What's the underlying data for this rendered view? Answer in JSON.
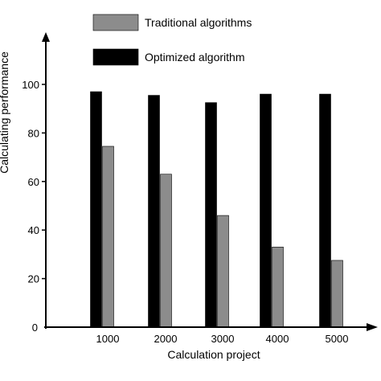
{
  "chart_data": {
    "type": "bar",
    "categories": [
      "1000",
      "2000",
      "3000",
      "4000",
      "5000"
    ],
    "series": [
      {
        "name": "Optimized algorithm",
        "values": [
          97,
          95.5,
          92.5,
          96,
          96
        ],
        "color": "#000000"
      },
      {
        "name": "Traditional algorithms",
        "values": [
          74.5,
          63,
          46,
          33,
          27.5
        ],
        "color": "#8c8c8c"
      }
    ],
    "xlabel": "Calculation project",
    "ylabel": "Calculating performance",
    "ylim": [
      0,
      120
    ],
    "yticks": [
      0,
      20,
      40,
      60,
      80,
      100
    ],
    "grid": false,
    "legend": [
      {
        "label": "Traditional algorithms",
        "color": "#8c8c8c"
      },
      {
        "label": "Optimized algorithm",
        "color": "#000000"
      }
    ],
    "legend_position": "top-center"
  }
}
